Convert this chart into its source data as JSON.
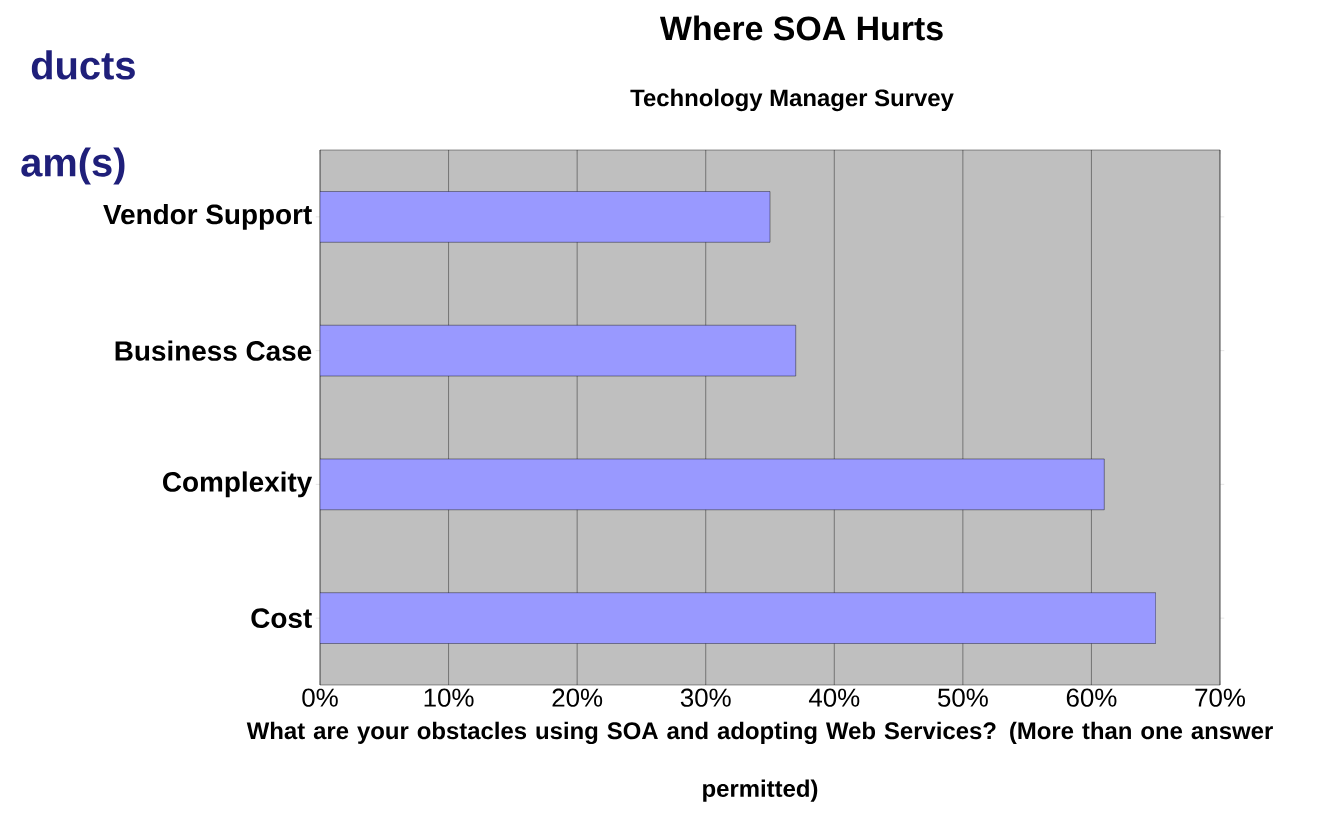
{
  "chart_data": {
    "type": "bar",
    "orientation": "horizontal",
    "title": "Where SOA Hurts",
    "subtitle": "Technology Manager Survey",
    "xlabel": "What are your obstacles using SOA and adopting Web Services? (More than one answer permitted)",
    "categories": [
      "Vendor Support",
      "Business Case",
      "Complexity",
      "Cost"
    ],
    "values": [
      35,
      37,
      61,
      65
    ],
    "color": "#9999ff",
    "xlim": [
      0,
      70
    ],
    "xticks": [
      {
        "value": 0,
        "label": "0%"
      },
      {
        "value": 10,
        "label": "10%"
      },
      {
        "value": 20,
        "label": "20%"
      },
      {
        "value": 30,
        "label": "30%"
      },
      {
        "value": 40,
        "label": "40%"
      },
      {
        "value": 50,
        "label": "50%"
      },
      {
        "value": 60,
        "label": "60%"
      },
      {
        "value": 70,
        "label": "70%"
      }
    ],
    "grid": "x",
    "annotations": [
      "ducts",
      "am(s)"
    ]
  }
}
